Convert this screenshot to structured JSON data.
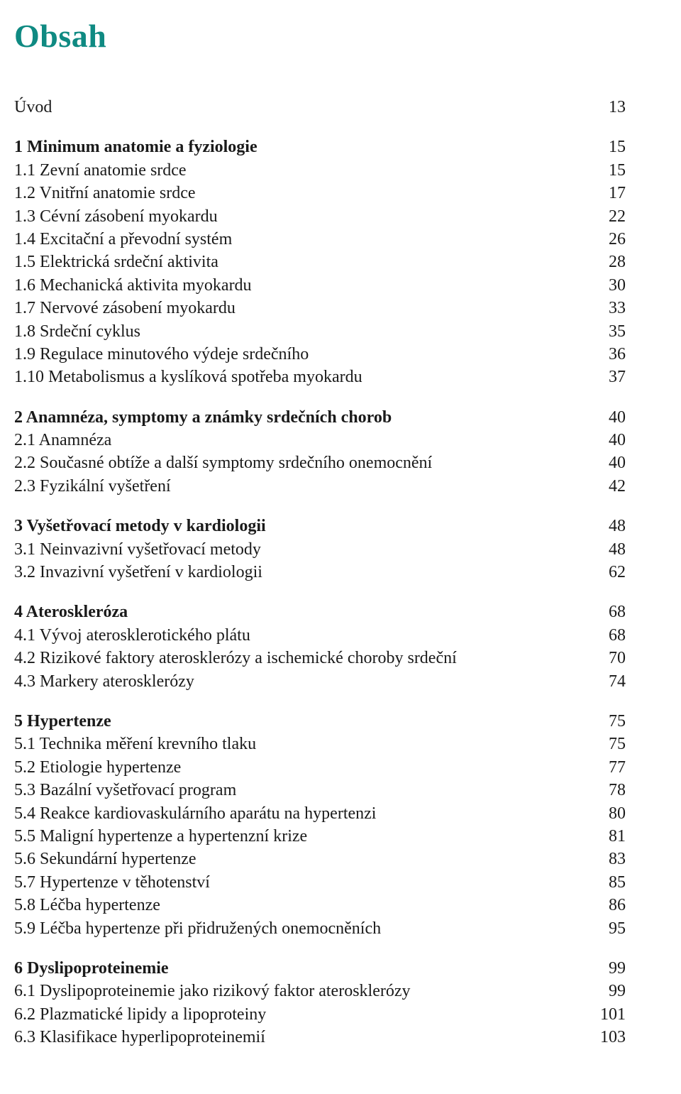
{
  "title": "Obsah",
  "title_color": "#0f8a82",
  "title_fontsize": 46,
  "body_fontsize": 24,
  "text_color": "#1a1a1a",
  "background_color": "#ffffff",
  "intro": {
    "label": "Úvod",
    "page": "13"
  },
  "sections": [
    {
      "head": {
        "label": "1 Minimum anatomie a fyziologie",
        "page": "15"
      },
      "items": [
        {
          "label": "1.1 Zevní anatomie srdce",
          "page": "15"
        },
        {
          "label": "1.2 Vnitřní anatomie srdce",
          "page": "17"
        },
        {
          "label": "1.3 Cévní zásobení myokardu",
          "page": "22"
        },
        {
          "label": "1.4 Excitační a převodní systém",
          "page": "26"
        },
        {
          "label": "1.5 Elektrická srdeční aktivita",
          "page": "28"
        },
        {
          "label": "1.6 Mechanická aktivita myokardu",
          "page": "30"
        },
        {
          "label": "1.7 Nervové zásobení myokardu",
          "page": "33"
        },
        {
          "label": "1.8 Srdeční cyklus",
          "page": "35"
        },
        {
          "label": "1.9 Regulace minutového výdeje srdečního",
          "page": "36"
        },
        {
          "label": "1.10 Metabolismus a kyslíková spotřeba myokardu",
          "page": "37"
        }
      ]
    },
    {
      "head": {
        "label": "2 Anamnéza, symptomy a známky srdečních chorob",
        "page": "40"
      },
      "items": [
        {
          "label": "2.1 Anamnéza",
          "page": "40"
        },
        {
          "label": "2.2 Současné obtíže a další symptomy srdečního onemocnění",
          "page": "40"
        },
        {
          "label": "2.3 Fyzikální vyšetření",
          "page": "42"
        }
      ]
    },
    {
      "head": {
        "label": "3 Vyšetřovací metody v kardiologii",
        "page": "48"
      },
      "items": [
        {
          "label": "3.1 Neinvazivní vyšetřovací metody",
          "page": "48"
        },
        {
          "label": "3.2 Invazivní vyšetření v kardiologii",
          "page": "62"
        }
      ]
    },
    {
      "head": {
        "label": "4 Ateroskleróza",
        "page": "68"
      },
      "items": [
        {
          "label": "4.1 Vývoj aterosklerotického plátu",
          "page": "68"
        },
        {
          "label": "4.2 Rizikové faktory aterosklerózy a ischemické choroby srdeční",
          "page": "70"
        },
        {
          "label": "4.3 Markery aterosklerózy",
          "page": "74"
        }
      ]
    },
    {
      "head": {
        "label": "5 Hypertenze",
        "page": "75"
      },
      "items": [
        {
          "label": "5.1 Technika měření krevního tlaku",
          "page": "75"
        },
        {
          "label": "5.2 Etiologie hypertenze",
          "page": "77"
        },
        {
          "label": "5.3 Bazální vyšetřovací program",
          "page": "78"
        },
        {
          "label": "5.4 Reakce kardiovaskulárního aparátu na hypertenzi",
          "page": "80"
        },
        {
          "label": "5.5 Maligní hypertenze a hypertenzní krize",
          "page": "81"
        },
        {
          "label": "5.6 Sekundární hypertenze",
          "page": "83"
        },
        {
          "label": "5.7 Hypertenze v těhotenství",
          "page": "85"
        },
        {
          "label": "5.8 Léčba hypertenze",
          "page": "86"
        },
        {
          "label": "5.9 Léčba hypertenze při přidružených onemocněních",
          "page": "95"
        }
      ]
    },
    {
      "head": {
        "label": "6 Dyslipoproteinemie",
        "page": "99"
      },
      "items": [
        {
          "label": "6.1 Dyslipoproteinemie jako rizikový faktor aterosklerózy",
          "page": "99"
        },
        {
          "label": "6.2 Plazmatické lipidy a lipoproteiny",
          "page": "101"
        },
        {
          "label": "6.3 Klasifikace hyperlipoproteinemií",
          "page": "103"
        }
      ]
    }
  ]
}
